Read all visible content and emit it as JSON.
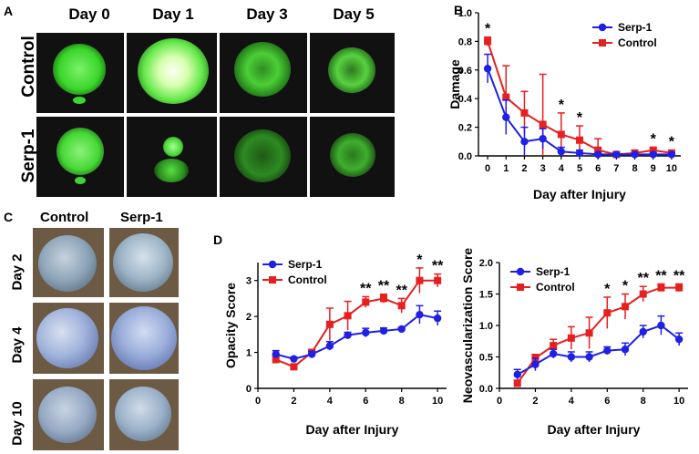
{
  "panel_a": {
    "label": "A",
    "columns": [
      "Day 0",
      "Day 1",
      "Day 3",
      "Day 5"
    ],
    "rows": [
      "Control",
      "Serp-1"
    ]
  },
  "panel_c": {
    "label": "C",
    "columns": [
      "Control",
      "Serp-1"
    ],
    "rows": [
      "Day 2",
      "Day 4",
      "Day 10"
    ]
  },
  "panel_d_label": "D",
  "colors": {
    "serp": "#1f1fe6",
    "control": "#e61f1f"
  },
  "chart_data": [
    {
      "id": "B",
      "panel_label": "B",
      "type": "line",
      "xlabel": "Day after Injury",
      "ylabel": "Damage",
      "x": [
        0,
        1,
        2,
        3,
        4,
        5,
        6,
        7,
        8,
        9,
        10
      ],
      "xticks": [
        "0",
        "1",
        "2",
        "3",
        "4",
        "5",
        "6",
        "7",
        "8",
        "9",
        "10"
      ],
      "ylim": [
        0,
        1.0
      ],
      "yticks": [
        "0.0",
        "0.2",
        "0.4",
        "0.6",
        "0.8",
        "1.0"
      ],
      "legend": [
        "Serp-1",
        "Control"
      ],
      "series": [
        {
          "name": "Serp-1",
          "values": [
            0.61,
            0.27,
            0.1,
            0.12,
            0.03,
            0.02,
            0.01,
            0.01,
            0.01,
            0.01,
            0.01
          ],
          "errors": [
            0.1,
            0.12,
            0.1,
            0.07,
            0.03,
            0.02,
            0.01,
            0.01,
            0.01,
            0.01,
            0.01
          ]
        },
        {
          "name": "Control",
          "values": [
            0.8,
            0.41,
            0.3,
            0.22,
            0.15,
            0.11,
            0.04,
            0.01,
            0.02,
            0.04,
            0.02
          ],
          "errors": [
            0.03,
            0.22,
            0.15,
            0.35,
            0.15,
            0.1,
            0.08,
            0.02,
            0.02,
            0.02,
            0.02
          ]
        }
      ],
      "annotations": [
        {
          "x": 0,
          "text": "*"
        },
        {
          "x": 4,
          "text": "*"
        },
        {
          "x": 5,
          "text": "*"
        },
        {
          "x": 9,
          "text": "*"
        },
        {
          "x": 10,
          "text": "*"
        }
      ]
    },
    {
      "id": "D1",
      "type": "line",
      "xlabel": "Day after Injury",
      "ylabel": "Opacity Score",
      "x": [
        1,
        2,
        3,
        4,
        5,
        6,
        7,
        8,
        9,
        10
      ],
      "xticks": [
        "0",
        "2",
        "4",
        "6",
        "8",
        "10"
      ],
      "xlim": [
        0,
        10.5
      ],
      "ylim": [
        0,
        3.5
      ],
      "yticks": [
        "0",
        "1",
        "2",
        "3"
      ],
      "legend": [
        "Serp-1",
        "Control"
      ],
      "series": [
        {
          "name": "Serp-1",
          "values": [
            0.95,
            0.82,
            0.95,
            1.18,
            1.48,
            1.55,
            1.6,
            1.65,
            2.05,
            1.95
          ],
          "errors": [
            0.1,
            0.05,
            0.08,
            0.12,
            0.08,
            0.12,
            0.08,
            0.05,
            0.25,
            0.2
          ]
        },
        {
          "name": "Control",
          "values": [
            0.8,
            0.6,
            1.0,
            1.78,
            2.02,
            2.4,
            2.5,
            2.3,
            3.0,
            3.0
          ],
          "errors": [
            0.1,
            0.05,
            0.08,
            0.45,
            0.4,
            0.15,
            0.12,
            0.2,
            0.35,
            0.18
          ]
        }
      ],
      "annotations": [
        {
          "x": 6,
          "text": "**"
        },
        {
          "x": 7,
          "text": "**"
        },
        {
          "x": 8,
          "text": "**"
        },
        {
          "x": 9,
          "text": "*"
        },
        {
          "x": 10,
          "text": "**"
        }
      ]
    },
    {
      "id": "D2",
      "type": "line",
      "xlabel": "Day after Injury",
      "ylabel": "Neovascularization Score",
      "x": [
        1,
        2,
        3,
        4,
        5,
        6,
        7,
        8,
        9,
        10
      ],
      "xticks": [
        "0",
        "2",
        "4",
        "6",
        "8",
        "10"
      ],
      "xlim": [
        0,
        10.5
      ],
      "ylim": [
        0,
        2.0
      ],
      "yticks": [
        "0.0",
        "0.5",
        "1.0",
        "1.5",
        "2.0"
      ],
      "legend": [
        "Serp-1",
        "Control"
      ],
      "series": [
        {
          "name": "Serp-1",
          "values": [
            0.22,
            0.38,
            0.55,
            0.5,
            0.5,
            0.6,
            0.62,
            0.9,
            1.0,
            0.78
          ],
          "errors": [
            0.08,
            0.1,
            0.07,
            0.08,
            0.08,
            0.06,
            0.1,
            0.1,
            0.15,
            0.1
          ]
        },
        {
          "name": "Control",
          "values": [
            0.08,
            0.48,
            0.68,
            0.8,
            0.88,
            1.2,
            1.3,
            1.5,
            1.6,
            1.6
          ],
          "errors": [
            0.05,
            0.06,
            0.1,
            0.18,
            0.25,
            0.25,
            0.2,
            0.12,
            0.06,
            0.06
          ]
        }
      ],
      "annotations": [
        {
          "x": 6,
          "text": "*"
        },
        {
          "x": 7,
          "text": "*"
        },
        {
          "x": 8,
          "text": "**"
        },
        {
          "x": 9,
          "text": "**"
        },
        {
          "x": 10,
          "text": "**"
        }
      ]
    }
  ]
}
